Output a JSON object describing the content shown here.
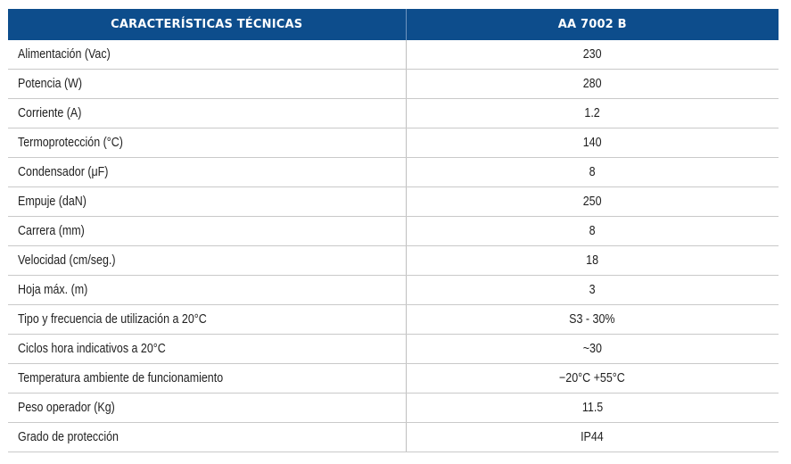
{
  "table": {
    "headers": [
      "CARACTERÍSTICAS TÉCNICAS",
      "AA 7002 B"
    ],
    "rows": [
      {
        "label": "Alimentación (Vac)",
        "value": "230"
      },
      {
        "label": "Potencia (W)",
        "value": "280"
      },
      {
        "label": "Corriente (A)",
        "value": "1.2"
      },
      {
        "label": "Termoprotección (°C)",
        "value": "140"
      },
      {
        "label": "Condensador (μF)",
        "value": "8"
      },
      {
        "label": "Empuje (daN)",
        "value": "250"
      },
      {
        "label": "Carrera (mm)",
        "value": "8"
      },
      {
        "label": "Velocidad (cm/seg.)",
        "value": "18"
      },
      {
        "label": "Hoja máx. (m)",
        "value": "3"
      },
      {
        "label": "Tipo y frecuencia de utilización a 20°C",
        "value": "S3 - 30%"
      },
      {
        "label": "Ciclos hora indicativos a 20°C",
        "value": "~30"
      },
      {
        "label": "Temperatura ambiente de funcionamiento",
        "value": "−20°C +55°C"
      },
      {
        "label": "Peso operador (Kg)",
        "value": "11.5"
      },
      {
        "label": "Grado de protección",
        "value": "IP44"
      }
    ]
  },
  "colors": {
    "header_background": "#0d4d8c",
    "header_text": "#ffffff",
    "row_divider": "#c9c9c9"
  }
}
